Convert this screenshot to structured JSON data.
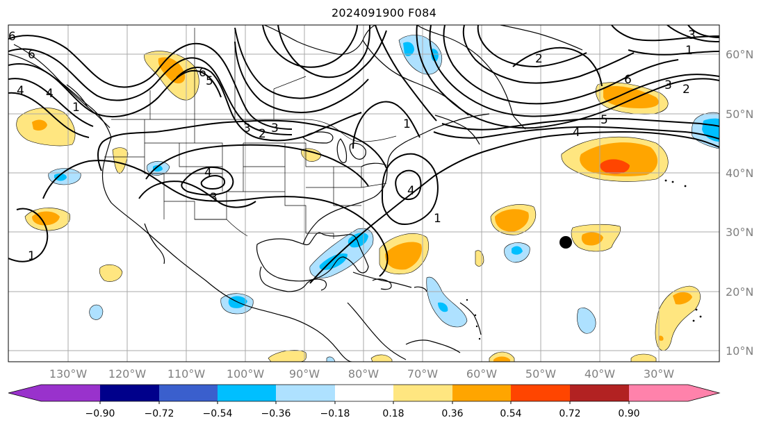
{
  "title": "2024091900 F084",
  "latitude_labels": [
    "60°N",
    "50°N",
    "40°N",
    "30°N",
    "20°N",
    "10°N"
  ],
  "longitude_labels": [
    "130°W",
    "120°W",
    "110°W",
    "100°W",
    "90°W",
    "80°W",
    "70°W",
    "60°W",
    "50°W",
    "40°W",
    "30°W"
  ],
  "contour_labels": [
    "6",
    "6",
    "4",
    "4",
    "1",
    "6",
    "5",
    "3",
    "2",
    "3",
    "1",
    "4",
    "3",
    "1",
    "1",
    "4",
    "2",
    "6",
    "5",
    "4",
    "3",
    "2",
    "1",
    "3"
  ],
  "colorbar": {
    "ticks": [
      "−0.90",
      "−0.72",
      "−0.54",
      "−0.36",
      "−0.18",
      "0.18",
      "0.36",
      "0.54",
      "0.72",
      "0.90"
    ],
    "colors": [
      "#9932cc",
      "#00008b",
      "#3a5fcd",
      "#00bfff",
      "#aee1ff",
      "#ffffff",
      "#ffe680",
      "#ffa500",
      "#ff4500",
      "#b22222",
      "#ff82ab"
    ]
  },
  "fill_colors": {
    "light_yellow": "#ffe680",
    "orange": "#ffa500",
    "red_orange": "#ff4500",
    "light_blue": "#aee1ff",
    "cyan": "#00bfff"
  },
  "marker": {
    "name": "storm-center",
    "lon": -46,
    "lat": 28
  }
}
